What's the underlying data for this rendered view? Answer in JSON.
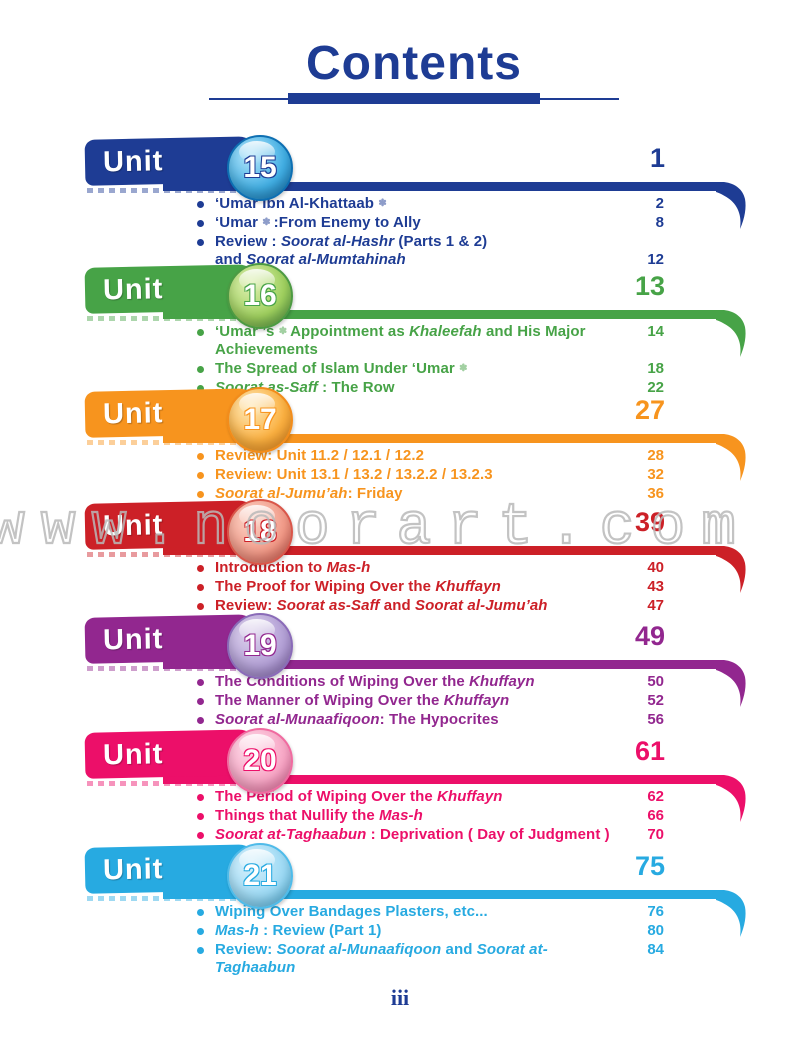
{
  "page": {
    "title": "Contents",
    "watermark": "www.noorart.com",
    "footer_page_number": "iii",
    "title_color": "#1e3c94"
  },
  "units": [
    {
      "label": "Unit",
      "number": "15",
      "page": "1",
      "color": "#1e3c94",
      "circle": {
        "light": "#b5e6fb",
        "mid": "#41aee3",
        "dark": "#0e6fb2"
      },
      "items": [
        {
          "page": "2",
          "align": "start",
          "segments": [
            {
              "t": "‘Umar Ibn Al-Khattaab ",
              "s": "b"
            },
            {
              "t": "✽",
              "s": "h"
            }
          ]
        },
        {
          "page": "8",
          "align": "start",
          "segments": [
            {
              "t": "‘Umar ",
              "s": "b"
            },
            {
              "t": "✽ ",
              "s": "h"
            },
            {
              "t": ":From Enemy to Ally",
              "s": "b"
            }
          ]
        },
        {
          "page": "12",
          "align": "end",
          "segments": [
            {
              "t": "Review : ",
              "s": "b"
            },
            {
              "t": "Soorat al-Hashr ",
              "s": "i"
            },
            {
              "t": "(Parts 1 & 2)",
              "s": "b"
            },
            {
              "t": "",
              "s": "br"
            },
            {
              "t": "and ",
              "s": "b"
            },
            {
              "t": "Soorat al-Mumtahinah",
              "s": "i"
            }
          ]
        }
      ]
    },
    {
      "label": "Unit",
      "number": "16",
      "page": "13",
      "color": "#47a347",
      "circle": {
        "light": "#dff0b2",
        "mid": "#9fd05e",
        "dark": "#4d9a43"
      },
      "items": [
        {
          "page": "14",
          "align": "start",
          "segments": [
            {
              "t": "‘Umar ’s ",
              "s": "b"
            },
            {
              "t": "✽ ",
              "s": "h"
            },
            {
              "t": "Appointment as ",
              "s": "b"
            },
            {
              "t": "Khaleefah ",
              "s": "i"
            },
            {
              "t": "and His Major",
              "s": "b"
            },
            {
              "t": "",
              "s": "br"
            },
            {
              "t": "Achievements",
              "s": "b"
            }
          ]
        },
        {
          "page": "18",
          "align": "start",
          "segments": [
            {
              "t": "The Spread of Islam Under ‘Umar ",
              "s": "b"
            },
            {
              "t": "✽",
              "s": "h"
            }
          ]
        },
        {
          "page": "22",
          "align": "start",
          "segments": [
            {
              "t": "Soorat as-Saff ",
              "s": "i"
            },
            {
              "t": ": The Row",
              "s": "b"
            }
          ]
        }
      ]
    },
    {
      "label": "Unit",
      "number": "17",
      "page": "27",
      "color": "#f7941e",
      "circle": {
        "light": "#fde9b9",
        "mid": "#fbb040",
        "dark": "#f28c1b"
      },
      "items": [
        {
          "page": "28",
          "align": "start",
          "segments": [
            {
              "t": "Review: Unit 11.2 / 12.1 / 12.2",
              "s": "b"
            }
          ]
        },
        {
          "page": "32",
          "align": "start",
          "segments": [
            {
              "t": "Review: Unit 13.1 / 13.2 / 13.2.2 / 13.2.3",
              "s": "b"
            }
          ]
        },
        {
          "page": "36",
          "align": "start",
          "segments": [
            {
              "t": "Soorat al-Jumu’ah",
              "s": "i"
            },
            {
              "t": ": Friday",
              "s": "b"
            }
          ]
        }
      ]
    },
    {
      "label": "Unit",
      "number": "18",
      "page": "39",
      "color": "#cc2027",
      "circle": {
        "light": "#fbd3c6",
        "mid": "#f29a88",
        "dark": "#d9564a"
      },
      "items": [
        {
          "page": "40",
          "align": "start",
          "segments": [
            {
              "t": "Introduction to ",
              "s": "b"
            },
            {
              "t": "Mas-h",
              "s": "i"
            }
          ]
        },
        {
          "page": "43",
          "align": "start",
          "segments": [
            {
              "t": "The Proof for Wiping Over the ",
              "s": "b"
            },
            {
              "t": "Khuffayn",
              "s": "i"
            }
          ]
        },
        {
          "page": "47",
          "align": "start",
          "segments": [
            {
              "t": "Review: ",
              "s": "b"
            },
            {
              "t": "Soorat as-Saff ",
              "s": "i"
            },
            {
              "t": "and ",
              "s": "b"
            },
            {
              "t": "Soorat al-Jumu’ah",
              "s": "i"
            }
          ]
        }
      ]
    },
    {
      "label": "Unit",
      "number": "19",
      "page": "49",
      "color": "#92278f",
      "circle": {
        "light": "#ddd2ec",
        "mid": "#b3a0d6",
        "dark": "#8a6bb8"
      },
      "items": [
        {
          "page": "50",
          "align": "start",
          "segments": [
            {
              "t": "The Conditions of Wiping Over the ",
              "s": "b"
            },
            {
              "t": "Khuffayn",
              "s": "i"
            }
          ]
        },
        {
          "page": "52",
          "align": "start",
          "segments": [
            {
              "t": "The Manner of Wiping Over the ",
              "s": "b"
            },
            {
              "t": "Khuffayn",
              "s": "i"
            }
          ]
        },
        {
          "page": "56",
          "align": "start",
          "segments": [
            {
              "t": "Soorat al-Munaafiqoon",
              "s": "i"
            },
            {
              "t": ": The Hypocrites",
              "s": "b"
            }
          ]
        }
      ]
    },
    {
      "label": "Unit",
      "number": "20",
      "page": "61",
      "color": "#ec0f69",
      "circle": {
        "light": "#fcd9e7",
        "mid": "#f8a7c6",
        "dark": "#f06ba0"
      },
      "items": [
        {
          "page": "62",
          "align": "start",
          "segments": [
            {
              "t": "The Period of Wiping Over the ",
              "s": "b"
            },
            {
              "t": "Khuffayn",
              "s": "i"
            }
          ]
        },
        {
          "page": "66",
          "align": "start",
          "segments": [
            {
              "t": "Things that Nullify the ",
              "s": "b"
            },
            {
              "t": "Mas-h",
              "s": "i"
            }
          ]
        },
        {
          "page": "70",
          "align": "start",
          "segments": [
            {
              "t": "Soorat at-Taghaabun ",
              "s": "i"
            },
            {
              "t": ": Deprivation ( Day of Judgment )",
              "s": "b"
            }
          ]
        }
      ]
    },
    {
      "label": "Unit",
      "number": "21",
      "page": "75",
      "color": "#27aae1",
      "circle": {
        "light": "#d9f1fc",
        "mid": "#9bd9f4",
        "dark": "#4fbbe9"
      },
      "items": [
        {
          "page": "76",
          "align": "start",
          "segments": [
            {
              "t": "Wiping Over Bandages Plasters, etc...",
              "s": "b"
            }
          ]
        },
        {
          "page": "80",
          "align": "start",
          "segments": [
            {
              "t": "Mas-h ",
              "s": "i"
            },
            {
              "t": ": Review (Part 1)",
              "s": "b"
            }
          ]
        },
        {
          "page": "84",
          "align": "start",
          "segments": [
            {
              "t": "Review: ",
              "s": "b"
            },
            {
              "t": "Soorat al-Munaafiqoon ",
              "s": "i"
            },
            {
              "t": "and ",
              "s": "b"
            },
            {
              "t": "Soorat at-Taghaabun",
              "s": "i"
            }
          ]
        }
      ]
    }
  ]
}
